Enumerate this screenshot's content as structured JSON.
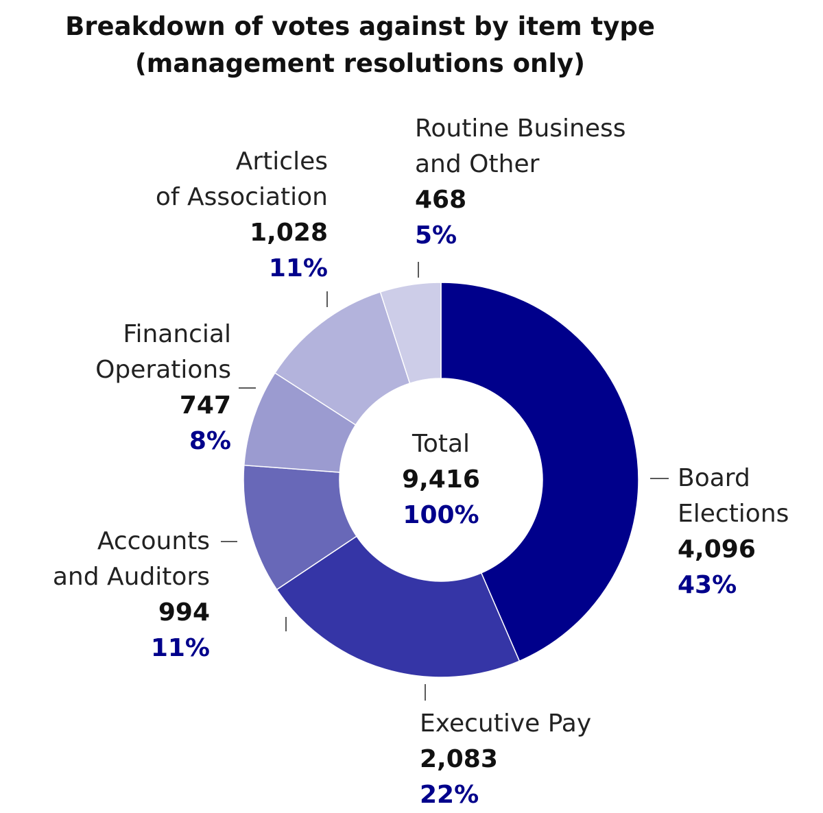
{
  "title": {
    "line1": "Breakdown of votes against by item type",
    "line2": "(management resolutions only)"
  },
  "center": {
    "label": "Total",
    "value": "9,416",
    "percent": "100%"
  },
  "labels": {
    "board_elections": {
      "name1": "Board",
      "name2": "Elections",
      "value": "4,096",
      "percent": "43%"
    },
    "executive_pay": {
      "name1": "Executive Pay",
      "value": "2,083",
      "percent": "22%"
    },
    "accounts_auditors": {
      "name1": "Accounts",
      "name2": "and Auditors",
      "value": "994",
      "percent": "11%"
    },
    "financial_operations": {
      "name1": "Financial",
      "name2": "Operations",
      "value": "747",
      "percent": "8%"
    },
    "articles_association": {
      "name1": "Articles",
      "name2": "of Association",
      "value": "1,028",
      "percent": "11%"
    },
    "routine_business": {
      "name1": "Routine Business",
      "name2": "and Other",
      "value": "468",
      "percent": "5%"
    }
  },
  "colors": {
    "accent": "#00008b",
    "slices": [
      "#00008b",
      "#3535a6",
      "#6868b8",
      "#9b9bd0",
      "#b3b3dc",
      "#cdcde8"
    ]
  },
  "chart_data": {
    "type": "pie",
    "donut": true,
    "title": "Breakdown of votes against by item type (management resolutions only)",
    "categories": [
      "Board Elections",
      "Executive Pay",
      "Accounts and Auditors",
      "Financial Operations",
      "Articles of Association",
      "Routine Business and Other"
    ],
    "values": [
      4096,
      2083,
      994,
      747,
      1028,
      468
    ],
    "percentages": [
      43,
      22,
      11,
      8,
      11,
      5
    ],
    "total": 9416
  }
}
